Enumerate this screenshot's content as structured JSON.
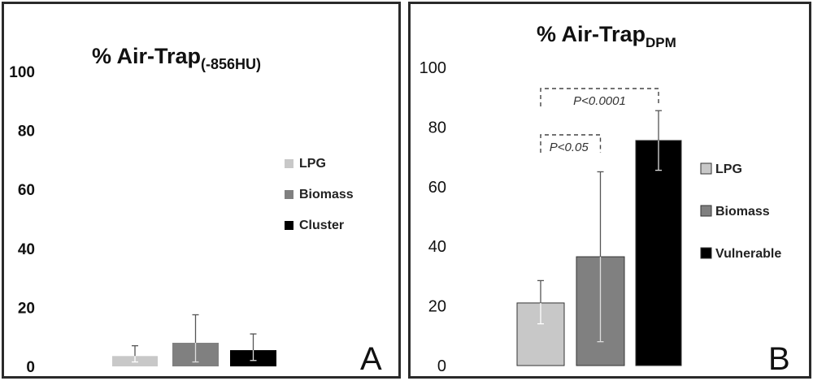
{
  "chart_data": [
    {
      "type": "bar",
      "panel_letter": "A",
      "title_main": "% Air-Trap",
      "title_sub": "(-856HU)",
      "xlabel": "",
      "ylabel": "",
      "ylim": [
        0,
        100
      ],
      "yticks": [
        0,
        20,
        40,
        60,
        80,
        100
      ],
      "grid": false,
      "legend_position": "right",
      "categories": [
        "LPG",
        "Biomass",
        "Cluster"
      ],
      "values": [
        3.5,
        8,
        5.5
      ],
      "error_upper": [
        7,
        17.5,
        11
      ],
      "error_lower": [
        1.5,
        1.5,
        2
      ],
      "colors": [
        "#c8c8c8",
        "#808080",
        "#000000"
      ],
      "legend": [
        "LPG",
        "Biomass",
        "Cluster"
      ],
      "annotations": []
    },
    {
      "type": "bar",
      "panel_letter": "B",
      "title_main": "% Air-Trap",
      "title_sub": "DPM",
      "xlabel": "",
      "ylabel": "",
      "ylim": [
        0,
        100
      ],
      "yticks": [
        0,
        20,
        40,
        60,
        80,
        100
      ],
      "grid": false,
      "legend_position": "right",
      "categories": [
        "LPG",
        "Biomass",
        "Vulnerable"
      ],
      "values": [
        21,
        36.5,
        75.5
      ],
      "error_upper": [
        28.5,
        65,
        85.5
      ],
      "error_lower": [
        14,
        8,
        65.5
      ],
      "colors": [
        "#c8c8c8",
        "#808080",
        "#000000"
      ],
      "legend": [
        "LPG",
        "Biomass",
        "Vulnerable"
      ],
      "annotations": [
        {
          "text": "P<0.0001",
          "from": 0,
          "to": 2,
          "y": 92.5
        },
        {
          "text": "P<0.05",
          "from": 0,
          "to": 1,
          "y": 76.5
        }
      ]
    }
  ]
}
